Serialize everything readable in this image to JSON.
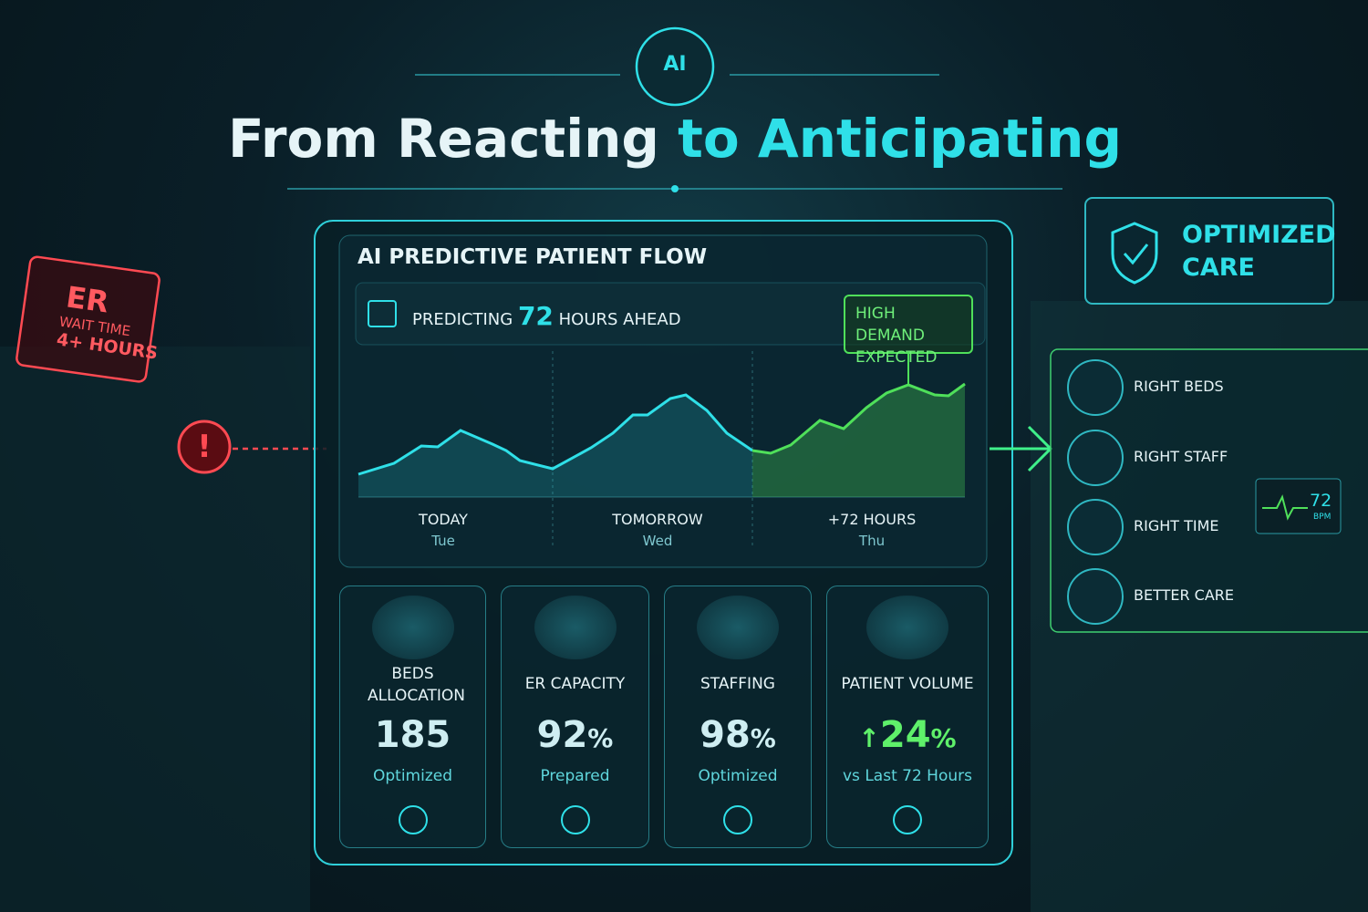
{
  "header": {
    "badge": "AI",
    "title_start": "From Reacting",
    "title_end": "to Anticipating"
  },
  "er_sign": {
    "title": "ER",
    "line1": "WAIT TIME",
    "line2": "4+ HOURS"
  },
  "alert": "!",
  "panel": {
    "title": "AI PREDICTIVE PATIENT FLOW",
    "forecast": {
      "prefix": "PREDICTING",
      "hours": "72",
      "suffix": "HOURS AHEAD",
      "callout": "HIGH DEMAND EXPECTED",
      "days": [
        {
          "label": "TODAY",
          "day": "Tue"
        },
        {
          "label": "TOMORROW",
          "day": "Wed"
        },
        {
          "label": "+72 HOURS",
          "day": "Thu"
        }
      ]
    },
    "cards": [
      {
        "label": "BEDS ALLOCATION",
        "value": "185",
        "status": "Optimized"
      },
      {
        "label": "ER CAPACITY",
        "value": "92",
        "unit": "%",
        "status": "Prepared"
      },
      {
        "label": "STAFFING",
        "value": "98",
        "unit": "%",
        "status": "Optimized"
      },
      {
        "label": "PATIENT VOLUME",
        "arrow": "↑",
        "value": "24",
        "unit": "%",
        "status": "vs Last 72 Hours"
      }
    ]
  },
  "outcome": {
    "title": "OPTIMIZED CARE",
    "items": [
      "RIGHT BEDS",
      "RIGHT STAFF",
      "RIGHT TIME",
      "BETTER CARE"
    ]
  },
  "monitor": {
    "value": "72",
    "unit": "BPM"
  }
}
